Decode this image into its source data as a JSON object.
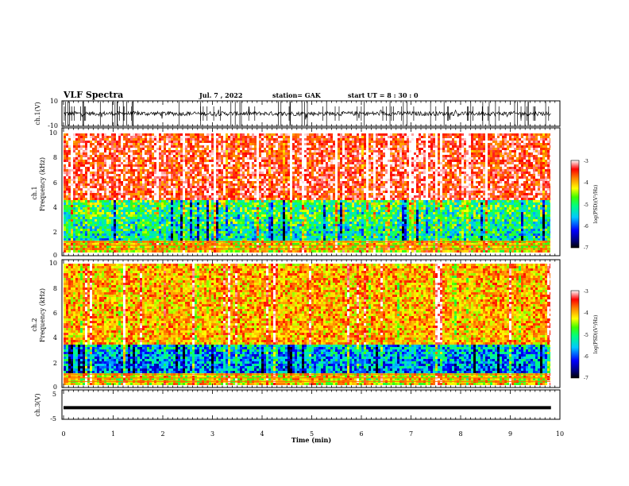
{
  "header": {
    "title": "VLF Spectra",
    "date": "Jul. 7 , 2022",
    "station": "station= GAK",
    "start_ut": "start UT =  8 : 30 : 0"
  },
  "chart_data": [
    {
      "type": "line",
      "panel": "ch1-waveform",
      "ylabel": "ch.1(V)",
      "ylim": [
        -10,
        10
      ],
      "yticks": [
        "10",
        "-10"
      ],
      "xlim": [
        0,
        10
      ],
      "description_value_range": [
        -3,
        3
      ]
    },
    {
      "type": "heatmap",
      "panel": "ch1-spectrogram",
      "ylabel_line1": "ch.1",
      "ylabel_line2": "Frequency (kHz)",
      "ylim": [
        0,
        10
      ],
      "yticks": [
        "0",
        "2",
        "4",
        "6",
        "8",
        "10"
      ],
      "xlim": [
        0,
        9.82
      ],
      "colorbar": {
        "label": "log(PSD)(V²/Hz)",
        "range": [
          -7,
          -3
        ],
        "ticks": [
          "-3",
          "-4",
          "-5",
          "-6",
          "-7"
        ]
      },
      "band_boundary_khz": 4.5,
      "upper_band_level": -3.4,
      "lower_band_level": -5.6
    },
    {
      "type": "heatmap",
      "panel": "ch2-spectrogram",
      "ylabel_line1": "ch.2",
      "ylabel_line2": "Frequency (kHz)",
      "ylim": [
        0,
        10
      ],
      "yticks": [
        "0",
        "2",
        "4",
        "6",
        "8",
        "10"
      ],
      "xlim": [
        0,
        9.82
      ],
      "colorbar": {
        "label": "log(PSD)(V²/Hz)",
        "range": [
          -7,
          -3
        ],
        "ticks": [
          "-3",
          "-4",
          "-5",
          "-6",
          "-7"
        ]
      },
      "band_boundary_khz": 3.5,
      "upper_band_level": -4.0,
      "lower_band_level": -6.2
    },
    {
      "type": "line",
      "panel": "ch3-waveform",
      "ylabel": "ch.3(V)",
      "ylim": [
        -5,
        5
      ],
      "yticks": [
        "5",
        "-5"
      ],
      "xlim": [
        0,
        10
      ],
      "constant_value": -1.0,
      "xlabel": "Time (min)",
      "xticks": [
        "0",
        "1",
        "2",
        "3",
        "4",
        "5",
        "6",
        "7",
        "8",
        "9",
        "10"
      ]
    }
  ]
}
